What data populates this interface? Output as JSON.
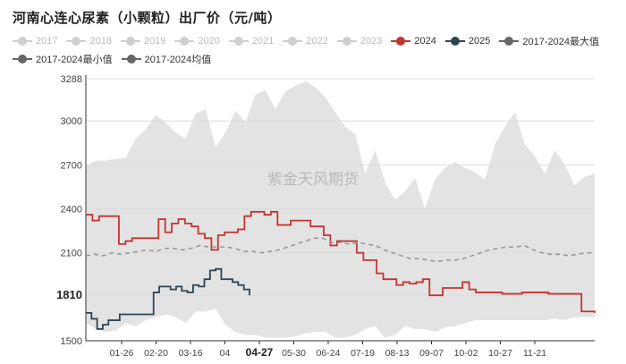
{
  "chart_data": {
    "type": "line",
    "title": "河南心连心尿素（小颗粒）出厂价（元/吨）",
    "watermark": "紫金天风期货",
    "y_ticks": [
      "3288",
      "3000",
      "2700",
      "2400",
      "2100",
      "1810",
      "1500"
    ],
    "y_tick_values": [
      3288,
      3000,
      2700,
      2400,
      2100,
      1810,
      1500
    ],
    "ylim": [
      1500,
      3288
    ],
    "x_ticks": [
      "01-26",
      "02-20",
      "03-16",
      "04",
      "04-27",
      "05-30",
      "06-24",
      "07-19",
      "08-13",
      "09-07",
      "10-02",
      "10-27",
      "11-21"
    ],
    "highlight_x_label": "04-27",
    "highlight_y_label": "1810",
    "legend": [
      {
        "name": "2017",
        "color": "#cfcfcf",
        "enabled": false
      },
      {
        "name": "2018",
        "color": "#cfcfcf",
        "enabled": false
      },
      {
        "name": "2019",
        "color": "#cfcfcf",
        "enabled": false
      },
      {
        "name": "2020",
        "color": "#cfcfcf",
        "enabled": false
      },
      {
        "name": "2021",
        "color": "#cfcfcf",
        "enabled": false
      },
      {
        "name": "2022",
        "color": "#cfcfcf",
        "enabled": false
      },
      {
        "name": "2023",
        "color": "#cfcfcf",
        "enabled": false
      },
      {
        "name": "2024",
        "color": "#c23531",
        "enabled": true
      },
      {
        "name": "2025",
        "color": "#2f4554",
        "enabled": true
      },
      {
        "name": "2017-2024最大值",
        "color": "#666666",
        "enabled": true
      },
      {
        "name": "2017-2024最小值",
        "color": "#666666",
        "enabled": true
      },
      {
        "name": "2017-2024均值",
        "color": "#666666",
        "enabled": true
      }
    ],
    "band": {
      "max": [
        2690,
        2730,
        2730,
        2740,
        2750,
        2880,
        2940,
        3040,
        2990,
        2920,
        2880,
        3050,
        3080,
        2820,
        2920,
        3070,
        2990,
        3180,
        3210,
        3080,
        3200,
        3240,
        3270,
        3230,
        3160,
        3060,
        2960,
        2910,
        2640,
        2800,
        2580,
        2460,
        2520,
        2610,
        2400,
        2600,
        2680,
        2720,
        2680,
        2650,
        2600,
        2840,
        2960,
        3060,
        2840,
        2760,
        2640,
        2800,
        2700,
        2560,
        2620,
        2640
      ],
      "min": [
        1620,
        1580,
        1560,
        1570,
        1620,
        1600,
        1640,
        1660,
        1680,
        1660,
        1620,
        1700,
        1700,
        1720,
        1610,
        1560,
        1540,
        1540,
        1520,
        1520,
        1520,
        1530,
        1550,
        1560,
        1560,
        1520,
        1520,
        1540,
        1580,
        1600,
        1520,
        1540,
        1600,
        1580,
        1580,
        1560,
        1590,
        1600,
        1620,
        1640,
        1640,
        1640,
        1640,
        1640,
        1640,
        1640,
        1640,
        1650,
        1640,
        1660,
        1660,
        1660
      ]
    },
    "series": [
      {
        "name": "2024",
        "color": "#c23531",
        "values": [
          2360,
          2320,
          2350,
          2350,
          2350,
          2160,
          2180,
          2200,
          2200,
          2200,
          2200,
          2330,
          2240,
          2300,
          2330,
          2300,
          2280,
          2230,
          2200,
          2120,
          2220,
          2240,
          2240,
          2260,
          2350,
          2380,
          2380,
          2360,
          2380,
          2290,
          2290,
          2320,
          2320,
          2320,
          2280,
          2280,
          2220,
          2150,
          2180,
          2180,
          2180,
          2100,
          2050,
          2050,
          1960,
          1920,
          1920,
          1880,
          1900,
          1890,
          1900,
          1920,
          1810,
          1810,
          1860,
          1860,
          1860,
          1900,
          1850,
          1830,
          1830,
          1830,
          1830,
          1820,
          1820,
          1820,
          1830,
          1830,
          1830,
          1830,
          1820,
          1820,
          1820,
          1820,
          1820,
          1700,
          1700,
          1690
        ]
      },
      {
        "name": "2025",
        "color": "#2f4554",
        "values": [
          1690,
          1650,
          1580,
          1610,
          1640,
          1640,
          1680,
          1680,
          1680,
          1680,
          1680,
          1680,
          1830,
          1870,
          1870,
          1850,
          1870,
          1840,
          1830,
          1880,
          1870,
          1920,
          1980,
          1990,
          1920,
          1920,
          1900,
          1880,
          1850,
          1810
        ]
      },
      {
        "name": "2017-2024均值",
        "color": "#999999",
        "values": [
          2080,
          2090,
          2080,
          2100,
          2090,
          2100,
          2110,
          2120,
          2110,
          2130,
          2130,
          2120,
          2130,
          2150,
          2140,
          2140,
          2140,
          2130,
          2110,
          2110,
          2100,
          2110,
          2120,
          2140,
          2160,
          2180,
          2200,
          2200,
          2170,
          2170,
          2160,
          2170,
          2160,
          2150,
          2120,
          2100,
          2080,
          2060,
          2060,
          2050,
          2040,
          2050,
          2050,
          2060,
          2080,
          2100,
          2120,
          2130,
          2140,
          2140,
          2150,
          2120,
          2100,
          2090,
          2090,
          2080,
          2090,
          2100,
          2100
        ]
      }
    ]
  }
}
